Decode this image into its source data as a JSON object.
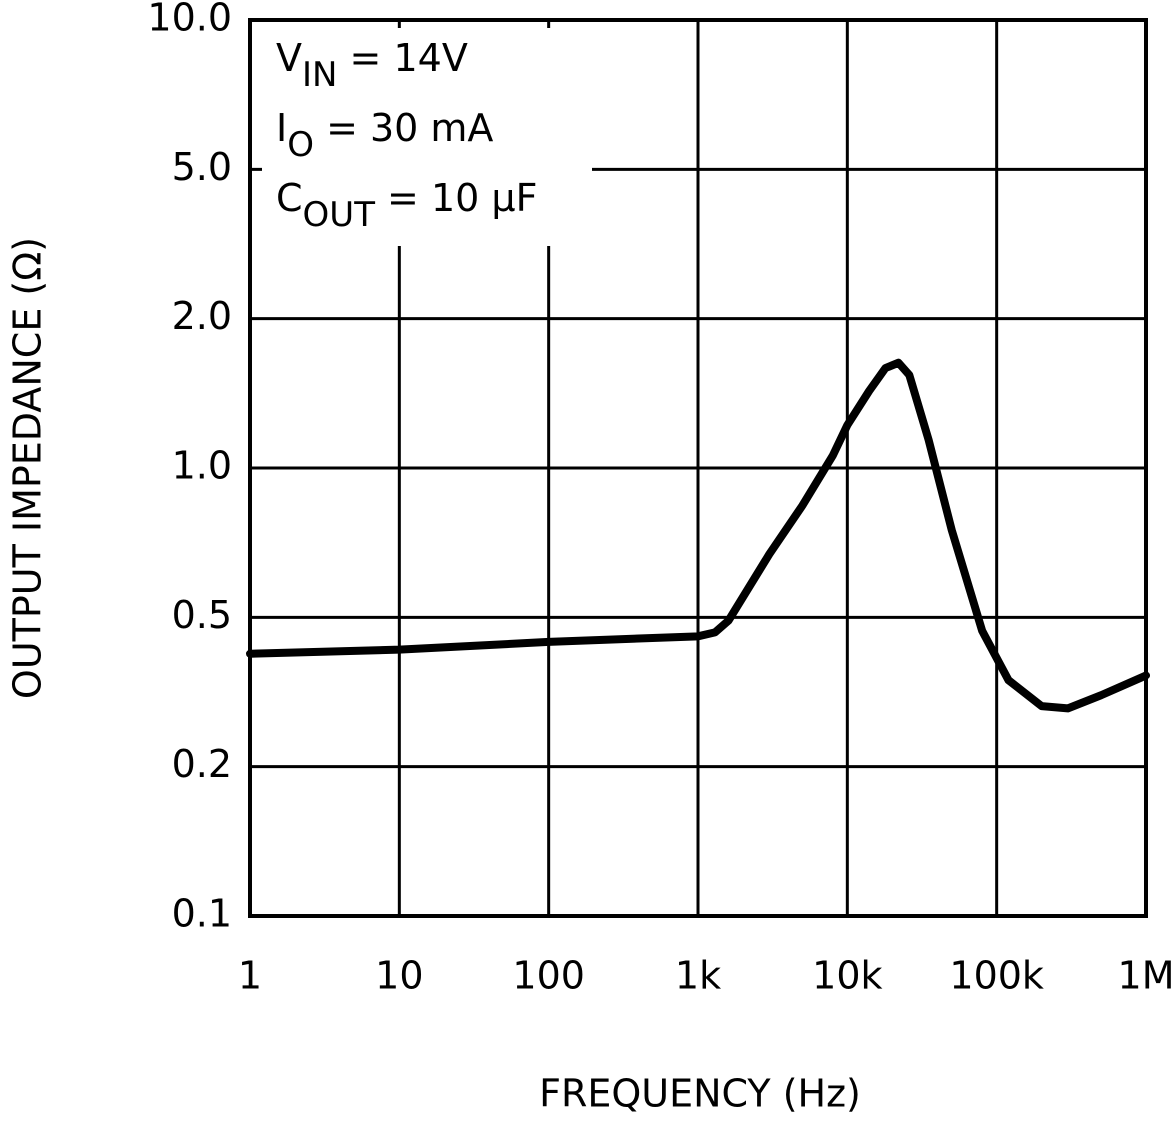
{
  "chart_data": {
    "type": "line",
    "x_label": "FREQUENCY (Hz)",
    "y_label": "OUTPUT IMPEDANCE (Ω)",
    "x": [
      1,
      10,
      100,
      1000,
      1300,
      1600,
      3000,
      5000,
      8000,
      10000,
      14000,
      18000,
      22000,
      26000,
      35000,
      50000,
      80000,
      120000,
      200000,
      300000,
      500000,
      1000000
    ],
    "series": [
      {
        "color": "#000000",
        "values": [
          0.4,
          0.41,
          0.43,
          0.445,
          0.456,
          0.49,
          0.67,
          0.84,
          1.06,
          1.22,
          1.43,
          1.59,
          1.63,
          1.54,
          1.14,
          0.75,
          0.46,
          0.34,
          0.29,
          0.286,
          0.31,
          0.35
        ]
      }
    ],
    "xlim": [
      1,
      1000000
    ],
    "xticks": [
      1,
      10,
      100,
      {
        "value": 1000,
        "label": "1k"
      },
      {
        "value": 10000,
        "label": "10k"
      },
      {
        "value": 100000,
        "label": "100k"
      },
      {
        "value": 1000000,
        "label": "1M"
      }
    ],
    "ylim": [
      0.1,
      10
    ],
    "yticks": [
      0.1,
      0.2,
      0.5,
      {
        "value": 1,
        "label": "1.0"
      },
      {
        "value": 2,
        "label": "2.0"
      },
      {
        "value": 5,
        "label": "5.0"
      },
      {
        "value": 10,
        "label": "10.0"
      }
    ],
    "x_log_scale": true,
    "y_log_scale": true,
    "grid": true,
    "annotations": [
      {
        "main": "V",
        "sub": "IN",
        "rest": " = 14V"
      },
      {
        "main": "I",
        "sub": "O",
        "rest": " = 30 mA"
      },
      {
        "main": "C",
        "sub": "OUT",
        "rest": " = 10 μF"
      }
    ]
  }
}
